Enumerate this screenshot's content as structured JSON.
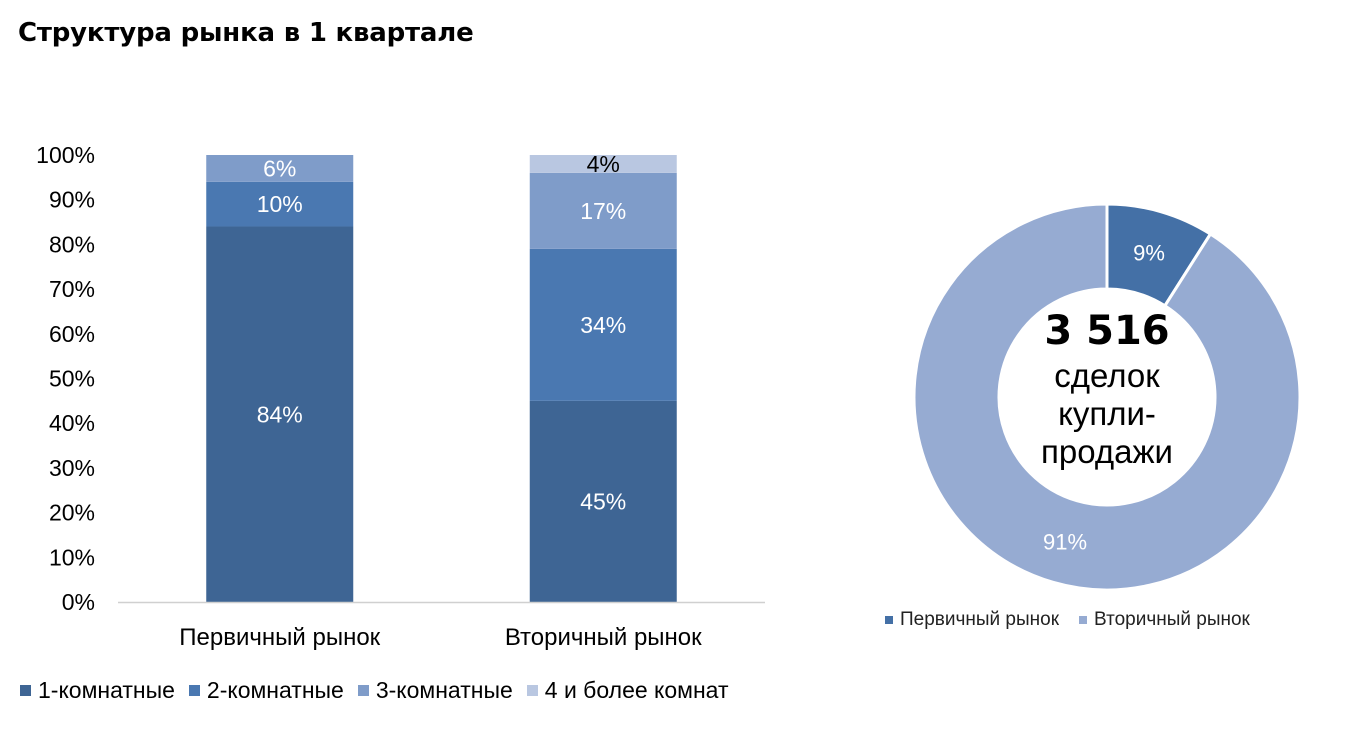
{
  "title": "Структура рынка в 1 квартале",
  "chart_data": [
    {
      "type": "bar",
      "stacked": true,
      "categories": [
        "Первичный рынок",
        "Вторичный рынок"
      ],
      "series": [
        {
          "name": "1-комнатные",
          "values": [
            84,
            45
          ],
          "labels": [
            "84%",
            "45%"
          ],
          "color": "#3E6594",
          "label_color": "#ffffff"
        },
        {
          "name": "2-комнатные",
          "values": [
            10,
            34
          ],
          "labels": [
            "10%",
            "34%"
          ],
          "color": "#4A78B1",
          "label_color": "#ffffff"
        },
        {
          "name": "3-комнатные",
          "values": [
            6,
            17
          ],
          "labels": [
            "6%",
            "17%"
          ],
          "color": "#7F9CC9",
          "label_color": "#ffffff"
        },
        {
          "name": "4 и более комнат",
          "values": [
            0,
            4
          ],
          "labels": [
            "",
            "4%"
          ],
          "color": "#B9C7E1",
          "label_color": "#000000"
        }
      ],
      "ylim": [
        0,
        100
      ],
      "yticks": [
        "0%",
        "10%",
        "20%",
        "30%",
        "40%",
        "50%",
        "60%",
        "70%",
        "80%",
        "90%",
        "100%"
      ],
      "grid": false,
      "legend": "bottom"
    },
    {
      "type": "pie",
      "donut": true,
      "slices": [
        {
          "name": "Первичный рынок",
          "value": 9,
          "label": "9%",
          "color": "#4470A6"
        },
        {
          "name": "Вторичный рынок",
          "value": 91,
          "label": "91%",
          "color": "#96ABD2"
        }
      ],
      "center_text": {
        "total": "3 516",
        "lines": [
          "сделок",
          "купли-",
          "продажи"
        ]
      },
      "legend": "bottom"
    }
  ]
}
